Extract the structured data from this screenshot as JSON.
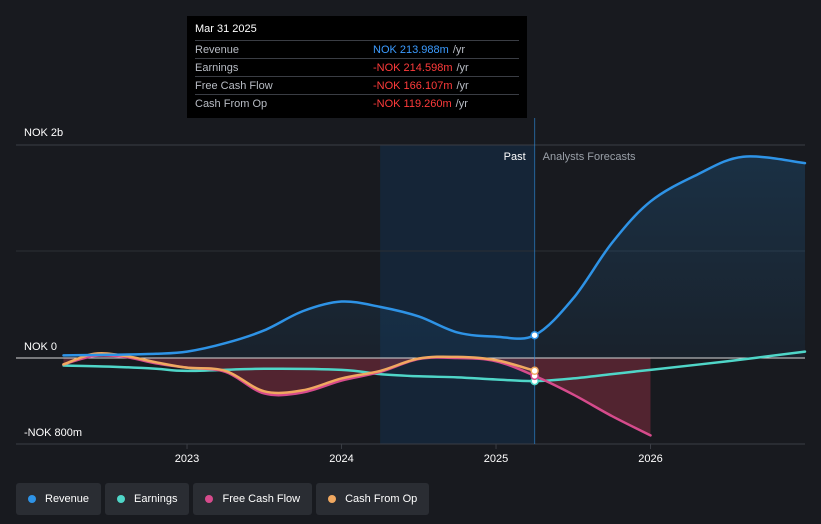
{
  "chart_data": {
    "type": "area",
    "title": "",
    "currency": "NOK",
    "y_tick_labels": [
      "NOK 2b",
      "NOK 0",
      "-NOK 800m"
    ],
    "ylim": [
      -800,
      2000
    ],
    "x_tick_labels": [
      "2023",
      "2024",
      "2025",
      "2026"
    ],
    "x_tick_values": [
      2023.0,
      2024.0,
      2025.0,
      2026.0
    ],
    "xlim": [
      2022.1,
      2027.0
    ],
    "past_label": "Past",
    "forecast_label": "Analysts Forecasts",
    "past_region_start": 2024.25,
    "past_region_end": 2025.25,
    "series": [
      {
        "name": "Revenue",
        "color": "#2e93e6",
        "x": [
          2022.2,
          2022.5,
          2022.8,
          2023.0,
          2023.25,
          2023.5,
          2023.75,
          2024.0,
          2024.25,
          2024.5,
          2024.75,
          2025.0,
          2025.25,
          2025.5,
          2025.75,
          2026.0,
          2026.3,
          2026.6,
          2027.0
        ],
        "values": [
          25,
          30,
          40,
          60,
          140,
          260,
          440,
          530,
          480,
          390,
          240,
          200,
          214,
          560,
          1080,
          1470,
          1720,
          1890,
          1830
        ]
      },
      {
        "name": "Earnings",
        "color": "#4fd6c8",
        "x": [
          2022.2,
          2022.5,
          2022.8,
          2023.0,
          2023.5,
          2024.0,
          2024.25,
          2024.5,
          2024.75,
          2025.0,
          2025.25,
          2025.5,
          2025.75,
          2026.0,
          2026.5,
          2027.0
        ],
        "values": [
          -70,
          -80,
          -100,
          -120,
          -100,
          -110,
          -150,
          -170,
          -180,
          -200,
          -215,
          -190,
          -150,
          -110,
          -30,
          60
        ]
      },
      {
        "name": "Free Cash Flow",
        "color": "#d64b8c",
        "x": [
          2022.2,
          2022.4,
          2022.6,
          2022.8,
          2023.0,
          2023.25,
          2023.5,
          2023.75,
          2024.0,
          2024.25,
          2024.5,
          2024.75,
          2025.0,
          2025.25,
          2025.5,
          2025.75,
          2026.0
        ],
        "values": [
          -60,
          20,
          10,
          -50,
          -90,
          -130,
          -330,
          -320,
          -210,
          -130,
          -10,
          0,
          -30,
          -166,
          -340,
          -540,
          -720
        ]
      },
      {
        "name": "Cash From Op",
        "color": "#f0a860",
        "x": [
          2022.2,
          2022.4,
          2022.6,
          2022.8,
          2023.0,
          2023.25,
          2023.5,
          2023.75,
          2024.0,
          2024.25,
          2024.5,
          2024.75,
          2025.0,
          2025.25
        ],
        "values": [
          -60,
          40,
          20,
          -40,
          -90,
          -120,
          -310,
          -300,
          -190,
          -120,
          -5,
          10,
          -20,
          -119
        ]
      }
    ],
    "tooltip": {
      "date": "Mar 31 2025",
      "rows": [
        {
          "label": "Revenue",
          "value": "NOK 213.988m",
          "unit": "/yr",
          "negative": false
        },
        {
          "label": "Earnings",
          "value": "-NOK 214.598m",
          "unit": "/yr",
          "negative": true
        },
        {
          "label": "Free Cash Flow",
          "value": "-NOK 166.107m",
          "unit": "/yr",
          "negative": true
        },
        {
          "label": "Cash From Op",
          "value": "-NOK 119.260m",
          "unit": "/yr",
          "negative": true
        }
      ]
    },
    "legend": [
      {
        "label": "Revenue",
        "color": "#2e93e6"
      },
      {
        "label": "Earnings",
        "color": "#4fd6c8"
      },
      {
        "label": "Free Cash Flow",
        "color": "#d64b8c"
      },
      {
        "label": "Cash From Op",
        "color": "#f0a860"
      }
    ]
  }
}
